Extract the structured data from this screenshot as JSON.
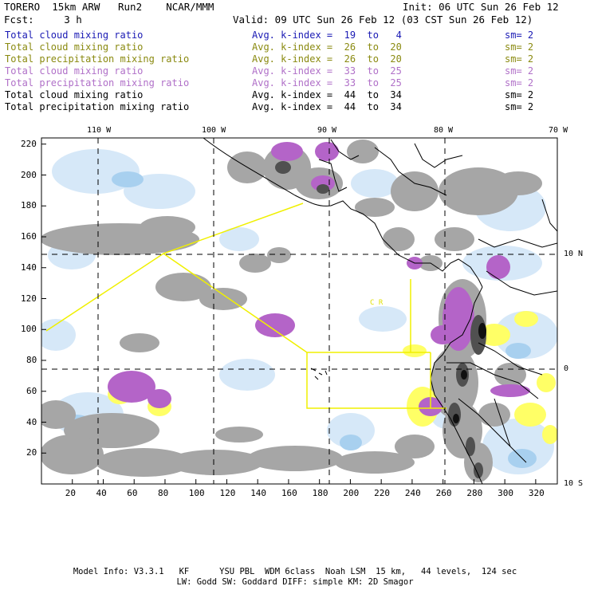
{
  "header": {
    "model": "TORERO  15km ARW   Run2    NCAR/MMM",
    "init": "Init: 06 UTC Sun 26 Feb 12",
    "fcst": "Fcst:     3 h",
    "valid": "Valid: 09 UTC Sun 26 Feb 12 (03 CST Sun 26 Feb 12)"
  },
  "legend": [
    {
      "label": "Total cloud mixing ratio",
      "index": "Avg. k-index =  19  to   4",
      "sm": "sm= 2",
      "color": "#1a1ab4"
    },
    {
      "label": "Total cloud mixing ratio",
      "index": "Avg. k-index =  26  to  20",
      "sm": "sm= 2",
      "color": "#8a8a10"
    },
    {
      "label": "Total precipitation mixing ratio",
      "index": "Avg. k-index =  26  to  20",
      "sm": "sm= 2",
      "color": "#8a8a10"
    },
    {
      "label": "Total cloud mixing ratio",
      "index": "Avg. k-index =  33  to  25",
      "sm": "sm= 2",
      "color": "#b070c8"
    },
    {
      "label": "Total precipitation mixing ratio",
      "index": "Avg. k-index =  33  to  25",
      "sm": "sm= 2",
      "color": "#b070c8"
    },
    {
      "label": "Total cloud mixing ratio",
      "index": "Avg. k-index =  44  to  34",
      "sm": "sm= 2",
      "color": "#000000"
    },
    {
      "label": "Total precipitation mixing ratio",
      "index": "Avg. k-index =  44  to  34",
      "sm": "sm= 2",
      "color": "#000000"
    }
  ],
  "axes": {
    "x_ticks": [
      "20",
      "40",
      "60",
      "80",
      "100",
      "120",
      "140",
      "160",
      "180",
      "200",
      "220",
      "240",
      "260",
      "280",
      "300",
      "320"
    ],
    "y_ticks": [
      "20",
      "40",
      "60",
      "80",
      "100",
      "120",
      "140",
      "160",
      "180",
      "200",
      "220"
    ],
    "lon_labels": [
      "110 W",
      "100 W",
      "90 W",
      "80 W",
      "70 W"
    ],
    "lat_labels": [
      "10 N",
      "0",
      "10 S"
    ]
  },
  "map_labels": {
    "country1": "C R"
  },
  "footer": {
    "line1": "Model Info: V3.3.1   KF      YSU PBL  WDM 6class  Noah LSM  15 km,   44 levels,  124 sec",
    "line2": "LW: Godd SW: Goddard DIFF: simple KM: 2D Smagor"
  },
  "colors": {
    "grey": "#a0a0a0",
    "darkgrey": "#505050",
    "black": "#101010",
    "lightblue": "#cfe4f6",
    "blue": "#a8d0ef",
    "yellow": "#ffff60",
    "purple": "#b464c8",
    "boundary": "#f0f000"
  }
}
